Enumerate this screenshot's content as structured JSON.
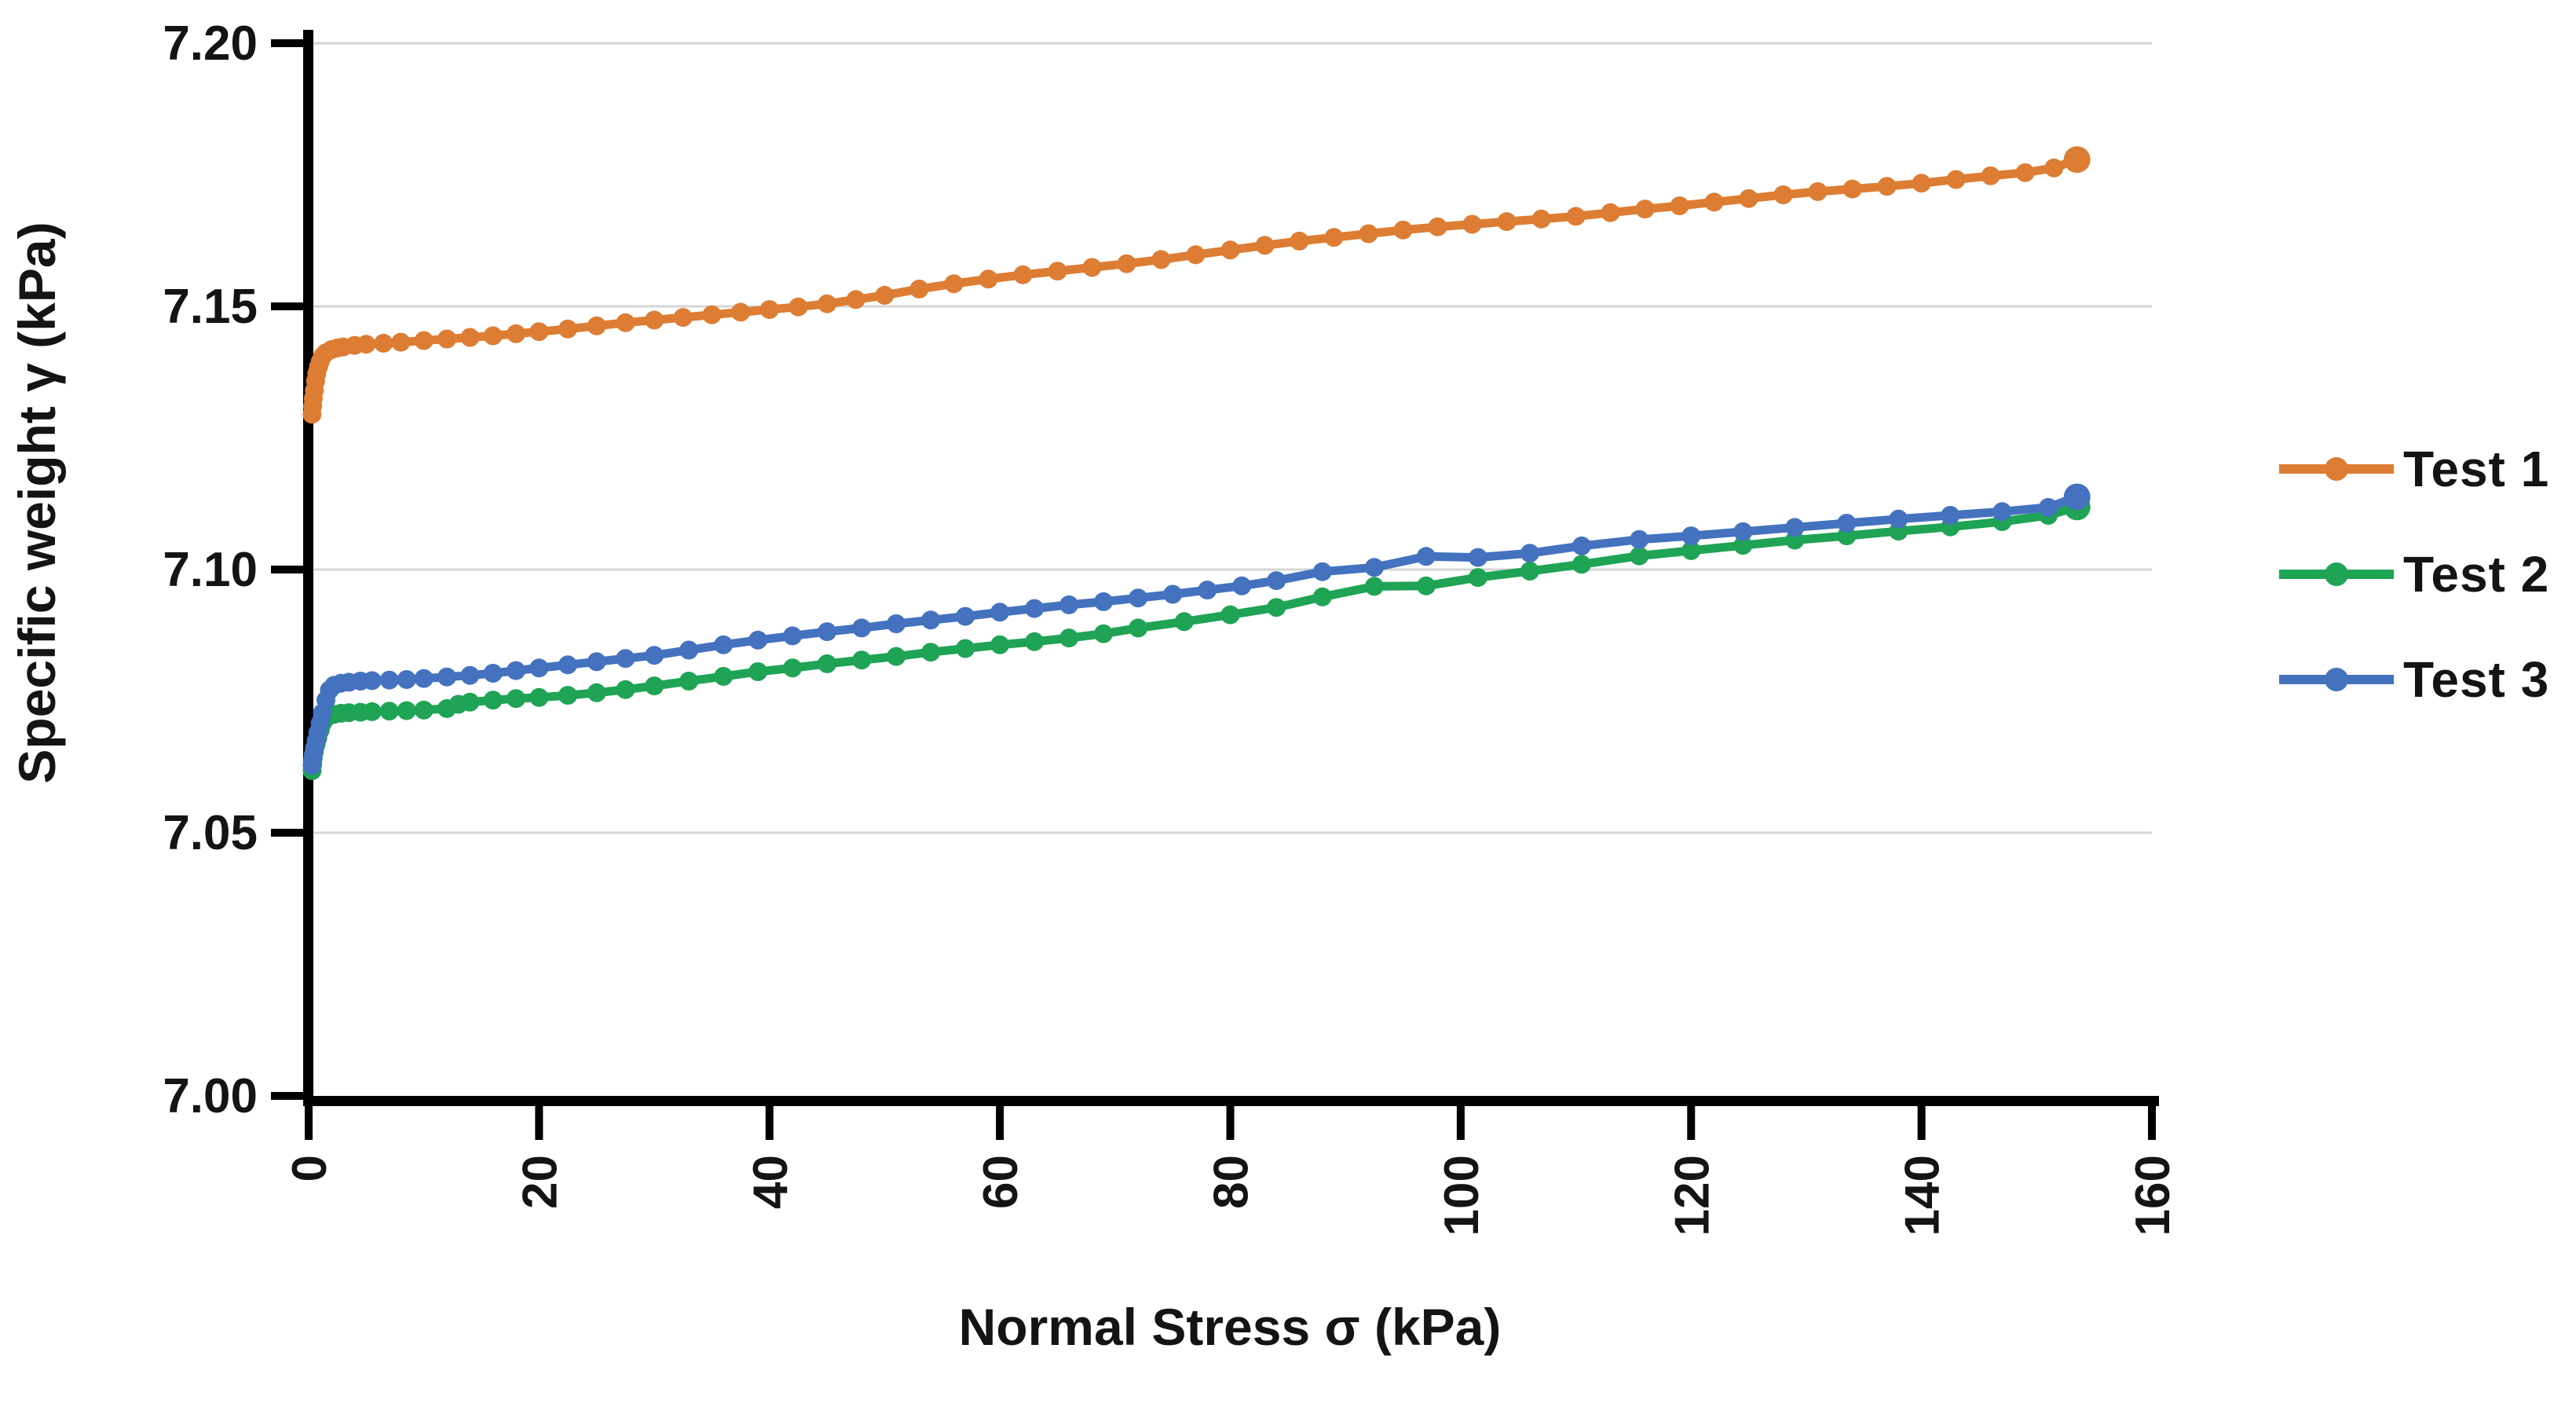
{
  "figure": {
    "background": "#FFFFFF",
    "text_color": "#141414",
    "axis_color": "#000000",
    "grid_color": "#D6D6D6"
  },
  "chart_data": {
    "type": "line",
    "title": "",
    "xlabel": "Normal Stress σ (kPa)",
    "ylabel": "Specific weight γ (kPa)",
    "xlim": [
      0,
      160
    ],
    "ylim": [
      7.0,
      7.2
    ],
    "grid": {
      "horizontal": true,
      "vertical": false
    },
    "legend_position": "right",
    "x_ticks": {
      "values": [
        0,
        20,
        40,
        60,
        80,
        100,
        120,
        140,
        160
      ],
      "labels": [
        "0",
        "20",
        "40",
        "60",
        "80",
        "100",
        "120",
        "140",
        "160"
      ],
      "rotation": -90
    },
    "y_ticks": {
      "values": [
        7.0,
        7.05,
        7.1,
        7.15,
        7.2
      ],
      "labels": [
        "7.00",
        "7.05",
        "7.10",
        "7.15",
        "7.20"
      ]
    },
    "series": [
      {
        "name": "Test 1",
        "color": "#DD7D33",
        "marker": "circle",
        "points": [
          [
            0.3,
            7.1295
          ],
          [
            0.35,
            7.131
          ],
          [
            0.4,
            7.1325
          ],
          [
            0.5,
            7.134
          ],
          [
            0.6,
            7.1358
          ],
          [
            0.7,
            7.1372
          ],
          [
            0.85,
            7.1385
          ],
          [
            1.0,
            7.1395
          ],
          [
            1.2,
            7.1405
          ],
          [
            1.5,
            7.1412
          ],
          [
            2.0,
            7.1418
          ],
          [
            2.5,
            7.1421
          ],
          [
            3.0,
            7.1423
          ],
          [
            4.0,
            7.1426
          ],
          [
            5.0,
            7.1428
          ],
          [
            6.5,
            7.143
          ],
          [
            8.0,
            7.1432
          ],
          [
            10,
            7.1435
          ],
          [
            12,
            7.1438
          ],
          [
            14,
            7.1441
          ],
          [
            16,
            7.1444
          ],
          [
            18,
            7.1448
          ],
          [
            20,
            7.1452
          ],
          [
            22.5,
            7.1457
          ],
          [
            25,
            7.1463
          ],
          [
            27.5,
            7.1469
          ],
          [
            30,
            7.1474
          ],
          [
            32.5,
            7.1479
          ],
          [
            35,
            7.1484
          ],
          [
            37.5,
            7.1489
          ],
          [
            40,
            7.1494
          ],
          [
            42.5,
            7.1499
          ],
          [
            45,
            7.1505
          ],
          [
            47.5,
            7.1513
          ],
          [
            50,
            7.1521
          ],
          [
            53,
            7.1533
          ],
          [
            56,
            7.1543
          ],
          [
            59,
            7.1552
          ],
          [
            62,
            7.156
          ],
          [
            65,
            7.1567
          ],
          [
            68,
            7.1574
          ],
          [
            71,
            7.1581
          ],
          [
            74,
            7.1589
          ],
          [
            77,
            7.1598
          ],
          [
            80,
            7.1607
          ],
          [
            83,
            7.1616
          ],
          [
            86,
            7.1624
          ],
          [
            89,
            7.1631
          ],
          [
            92,
            7.1638
          ],
          [
            95,
            7.1645
          ],
          [
            98,
            7.1651
          ],
          [
            101,
            7.1656
          ],
          [
            104,
            7.1661
          ],
          [
            107,
            7.1666
          ],
          [
            110,
            7.1671
          ],
          [
            113,
            7.1678
          ],
          [
            116,
            7.1685
          ],
          [
            119,
            7.1691
          ],
          [
            122,
            7.1698
          ],
          [
            125,
            7.1705
          ],
          [
            128,
            7.1712
          ],
          [
            131,
            7.1718
          ],
          [
            134,
            7.1723
          ],
          [
            137,
            7.1728
          ],
          [
            140,
            7.1734
          ],
          [
            143,
            7.1741
          ],
          [
            146,
            7.1748
          ],
          [
            149,
            7.1754
          ],
          [
            151.5,
            7.1763
          ],
          [
            153.5,
            7.1779
          ]
        ]
      },
      {
        "name": "Test 2",
        "color": "#1FA355",
        "marker": "circle",
        "points": [
          [
            0.3,
            7.0618
          ],
          [
            0.35,
            7.063
          ],
          [
            0.4,
            7.0642
          ],
          [
            0.5,
            7.0655
          ],
          [
            0.65,
            7.0668
          ],
          [
            0.8,
            7.068
          ],
          [
            1.0,
            7.0695
          ],
          [
            1.2,
            7.0708
          ],
          [
            1.5,
            7.0718
          ],
          [
            1.8,
            7.0723
          ],
          [
            2.2,
            7.0725
          ],
          [
            2.8,
            7.0727
          ],
          [
            3.5,
            7.0728
          ],
          [
            4.5,
            7.0729
          ],
          [
            5.5,
            7.073
          ],
          [
            7,
            7.0731
          ],
          [
            8.5,
            7.0732
          ],
          [
            10,
            7.0733
          ],
          [
            12,
            7.0736
          ],
          [
            13,
            7.0744
          ],
          [
            14,
            7.0748
          ],
          [
            16,
            7.0752
          ],
          [
            18,
            7.0755
          ],
          [
            20,
            7.0757
          ],
          [
            22.5,
            7.0761
          ],
          [
            25,
            7.0766
          ],
          [
            27.5,
            7.0772
          ],
          [
            30,
            7.0779
          ],
          [
            33,
            7.0788
          ],
          [
            36,
            7.0797
          ],
          [
            39,
            7.0806
          ],
          [
            42,
            7.0813
          ],
          [
            45,
            7.0821
          ],
          [
            48,
            7.0828
          ],
          [
            51,
            7.0835
          ],
          [
            54,
            7.0843
          ],
          [
            57,
            7.085
          ],
          [
            60,
            7.0857
          ],
          [
            63,
            7.0863
          ],
          [
            66,
            7.087
          ],
          [
            69,
            7.0878
          ],
          [
            72,
            7.0889
          ],
          [
            76,
            7.0901
          ],
          [
            80,
            7.0914
          ],
          [
            84,
            7.0928
          ],
          [
            88,
            7.0948
          ],
          [
            92.5,
            7.0968
          ],
          [
            97,
            7.0969
          ],
          [
            101.5,
            7.0985
          ],
          [
            106,
            7.0997
          ],
          [
            110.5,
            7.101
          ],
          [
            115.5,
            7.1026
          ],
          [
            120,
            7.1036
          ],
          [
            124.5,
            7.1046
          ],
          [
            129,
            7.1056
          ],
          [
            133.5,
            7.1064
          ],
          [
            138,
            7.1073
          ],
          [
            142.5,
            7.1081
          ],
          [
            147,
            7.1091
          ],
          [
            151,
            7.1103
          ],
          [
            153.5,
            7.1119
          ]
        ]
      },
      {
        "name": "Test 3",
        "color": "#4472BE",
        "marker": "circle",
        "points": [
          [
            0.3,
            7.0628
          ],
          [
            0.35,
            7.0638
          ],
          [
            0.4,
            7.0648
          ],
          [
            0.5,
            7.066
          ],
          [
            0.65,
            7.0675
          ],
          [
            0.8,
            7.069
          ],
          [
            1.0,
            7.0708
          ],
          [
            1.2,
            7.0728
          ],
          [
            1.5,
            7.0752
          ],
          [
            1.8,
            7.0771
          ],
          [
            2.2,
            7.078
          ],
          [
            2.8,
            7.0784
          ],
          [
            3.5,
            7.0786
          ],
          [
            4.5,
            7.0788
          ],
          [
            5.5,
            7.0789
          ],
          [
            7,
            7.079
          ],
          [
            8.5,
            7.0791
          ],
          [
            10,
            7.0793
          ],
          [
            12,
            7.0796
          ],
          [
            14,
            7.0799
          ],
          [
            16,
            7.0803
          ],
          [
            18,
            7.0808
          ],
          [
            20,
            7.0813
          ],
          [
            22.5,
            7.0819
          ],
          [
            25,
            7.0825
          ],
          [
            27.5,
            7.0831
          ],
          [
            30,
            7.0837
          ],
          [
            33,
            7.0847
          ],
          [
            36,
            7.0857
          ],
          [
            39,
            7.0866
          ],
          [
            42,
            7.0874
          ],
          [
            45,
            7.0882
          ],
          [
            48,
            7.0889
          ],
          [
            51,
            7.0897
          ],
          [
            54,
            7.0904
          ],
          [
            57,
            7.0911
          ],
          [
            60,
            7.0919
          ],
          [
            63,
            7.0926
          ],
          [
            66,
            7.0933
          ],
          [
            69,
            7.0939
          ],
          [
            72,
            7.0946
          ],
          [
            75,
            7.0953
          ],
          [
            78,
            7.0961
          ],
          [
            81,
            7.0969
          ],
          [
            84,
            7.0979
          ],
          [
            88,
            7.0996
          ],
          [
            92.5,
            7.1004
          ],
          [
            97,
            7.1025
          ],
          [
            101.5,
            7.1023
          ],
          [
            106,
            7.1031
          ],
          [
            110.5,
            7.1045
          ],
          [
            115.5,
            7.1057
          ],
          [
            120,
            7.1064
          ],
          [
            124.5,
            7.1072
          ],
          [
            129,
            7.108
          ],
          [
            133.5,
            7.1088
          ],
          [
            138,
            7.1096
          ],
          [
            142.5,
            7.1103
          ],
          [
            147,
            7.111
          ],
          [
            151,
            7.1118
          ],
          [
            153.5,
            7.1138
          ]
        ]
      }
    ]
  }
}
